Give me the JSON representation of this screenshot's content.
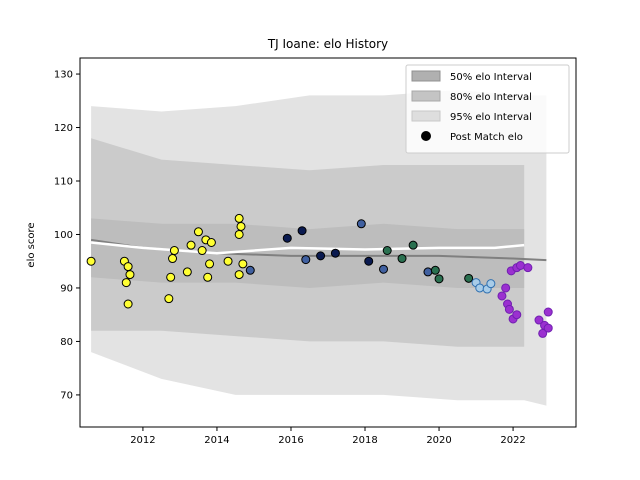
{
  "chart_data": {
    "type": "scatter",
    "title": "TJ Ioane: elo History",
    "xlabel": "",
    "ylabel": "elo score",
    "xlim": [
      2010.3,
      2023.7
    ],
    "ylim": [
      64,
      133
    ],
    "x_ticks": [
      2012,
      2014,
      2016,
      2018,
      2020,
      2022
    ],
    "y_ticks": [
      70,
      80,
      90,
      100,
      110,
      120,
      130
    ],
    "grid": false,
    "legend_placement": "top-right",
    "legend": [
      {
        "label": "50% elo Interval",
        "kind": "band",
        "color": "#b0b0b0"
      },
      {
        "label": "80% elo Interval",
        "kind": "band",
        "color": "#c8c8c8"
      },
      {
        "label": "95% elo Interval",
        "kind": "band",
        "color": "#e0e0e0"
      },
      {
        "label": "Post Match elo",
        "kind": "marker",
        "color": "#000000"
      }
    ],
    "bands": {
      "x": [
        2010.6,
        2012.5,
        2014.5,
        2016.5,
        2018.5,
        2020.5,
        2022.3,
        2022.9
      ],
      "band95_upper": [
        124,
        123,
        124,
        126,
        126,
        127,
        126,
        126
      ],
      "band95_lower": [
        78,
        73,
        70,
        70,
        70,
        69,
        69,
        68
      ],
      "band80_upper": [
        118,
        114,
        113,
        112,
        113,
        113,
        113,
        0
      ],
      "band80_lower": [
        82,
        82,
        81,
        80,
        80,
        79,
        79,
        0
      ],
      "band50_upper": [
        103,
        102,
        102,
        101,
        102,
        101,
        101,
        0
      ],
      "band50_lower": [
        92,
        91,
        91,
        90,
        91,
        90,
        90,
        0
      ]
    },
    "series": [
      {
        "name": "Post Match elo",
        "points": [
          {
            "x": 2010.6,
            "y": 95,
            "color": "#ffff33",
            "edge": "#000000"
          },
          {
            "x": 2011.5,
            "y": 95,
            "color": "#ffff33",
            "edge": "#000000"
          },
          {
            "x": 2011.55,
            "y": 91,
            "color": "#ffff33",
            "edge": "#000000"
          },
          {
            "x": 2011.6,
            "y": 87,
            "color": "#ffff33",
            "edge": "#000000"
          },
          {
            "x": 2011.6,
            "y": 94,
            "color": "#ffff33",
            "edge": "#000000"
          },
          {
            "x": 2011.65,
            "y": 92.5,
            "color": "#ffff33",
            "edge": "#000000"
          },
          {
            "x": 2012.7,
            "y": 88,
            "color": "#ffff33",
            "edge": "#000000"
          },
          {
            "x": 2012.75,
            "y": 92,
            "color": "#ffff33",
            "edge": "#000000"
          },
          {
            "x": 2012.8,
            "y": 95.5,
            "color": "#ffff33",
            "edge": "#000000"
          },
          {
            "x": 2012.85,
            "y": 97,
            "color": "#ffff33",
            "edge": "#000000"
          },
          {
            "x": 2013.2,
            "y": 93,
            "color": "#ffff33",
            "edge": "#000000"
          },
          {
            "x": 2013.3,
            "y": 98,
            "color": "#ffff33",
            "edge": "#000000"
          },
          {
            "x": 2013.5,
            "y": 100.5,
            "color": "#ffff33",
            "edge": "#000000"
          },
          {
            "x": 2013.6,
            "y": 97,
            "color": "#ffff33",
            "edge": "#000000"
          },
          {
            "x": 2013.7,
            "y": 99,
            "color": "#ffff33",
            "edge": "#000000"
          },
          {
            "x": 2013.75,
            "y": 92,
            "color": "#ffff33",
            "edge": "#000000"
          },
          {
            "x": 2013.8,
            "y": 94.5,
            "color": "#ffff33",
            "edge": "#000000"
          },
          {
            "x": 2013.85,
            "y": 98.5,
            "color": "#ffff33",
            "edge": "#000000"
          },
          {
            "x": 2014.3,
            "y": 95,
            "color": "#ffff33",
            "edge": "#000000"
          },
          {
            "x": 2014.6,
            "y": 103,
            "color": "#ffff33",
            "edge": "#000000"
          },
          {
            "x": 2014.65,
            "y": 101.5,
            "color": "#ffff33",
            "edge": "#000000"
          },
          {
            "x": 2014.6,
            "y": 100,
            "color": "#ffff33",
            "edge": "#000000"
          },
          {
            "x": 2014.6,
            "y": 92.5,
            "color": "#ffff33",
            "edge": "#000000"
          },
          {
            "x": 2014.7,
            "y": 94.5,
            "color": "#ffff33",
            "edge": "#000000"
          },
          {
            "x": 2014.9,
            "y": 93.3,
            "color": "#4060a0",
            "edge": "#000000"
          },
          {
            "x": 2015.9,
            "y": 99.3,
            "color": "#0a1a50",
            "edge": "#000000"
          },
          {
            "x": 2016.3,
            "y": 100.7,
            "color": "#0a1a50",
            "edge": "#000000"
          },
          {
            "x": 2016.4,
            "y": 95.3,
            "color": "#4060a0",
            "edge": "#000000"
          },
          {
            "x": 2016.8,
            "y": 96,
            "color": "#0a1a50",
            "edge": "#000000"
          },
          {
            "x": 2017.2,
            "y": 96.5,
            "color": "#0a1a50",
            "edge": "#000000"
          },
          {
            "x": 2017.9,
            "y": 102,
            "color": "#4060a0",
            "edge": "#000000"
          },
          {
            "x": 2018.1,
            "y": 95,
            "color": "#0a1a50",
            "edge": "#000000"
          },
          {
            "x": 2018.5,
            "y": 93.5,
            "color": "#4060a0",
            "edge": "#000000"
          },
          {
            "x": 2018.6,
            "y": 97,
            "color": "#2a7050",
            "edge": "#000000"
          },
          {
            "x": 2019.0,
            "y": 95.5,
            "color": "#2a7050",
            "edge": "#000000"
          },
          {
            "x": 2019.3,
            "y": 98,
            "color": "#2a7050",
            "edge": "#000000"
          },
          {
            "x": 2019.7,
            "y": 93,
            "color": "#4060a0",
            "edge": "#000000"
          },
          {
            "x": 2019.9,
            "y": 93.3,
            "color": "#2a7050",
            "edge": "#000000"
          },
          {
            "x": 2020.0,
            "y": 91.7,
            "color": "#2a7050",
            "edge": "#000000"
          },
          {
            "x": 2020.8,
            "y": 91.8,
            "color": "#2a7050",
            "edge": "#000000"
          },
          {
            "x": 2021.0,
            "y": 91,
            "color": "#a8cce8",
            "edge": "#3070b0"
          },
          {
            "x": 2021.1,
            "y": 90,
            "color": "#a8cce8",
            "edge": "#3070b0"
          },
          {
            "x": 2021.3,
            "y": 89.8,
            "color": "#a8cce8",
            "edge": "#3070b0"
          },
          {
            "x": 2021.4,
            "y": 90.8,
            "color": "#a8cce8",
            "edge": "#3070b0"
          },
          {
            "x": 2021.7,
            "y": 88.5,
            "color": "#9b30d0",
            "edge": "#7020b0"
          },
          {
            "x": 2021.8,
            "y": 90,
            "color": "#9b30d0",
            "edge": "#7020b0"
          },
          {
            "x": 2021.85,
            "y": 87,
            "color": "#9b30d0",
            "edge": "#7020b0"
          },
          {
            "x": 2021.9,
            "y": 86,
            "color": "#9b30d0",
            "edge": "#7020b0"
          },
          {
            "x": 2022.0,
            "y": 84.2,
            "color": "#9b30d0",
            "edge": "#7020b0"
          },
          {
            "x": 2022.1,
            "y": 85,
            "color": "#9b30d0",
            "edge": "#7020b0"
          },
          {
            "x": 2021.95,
            "y": 93.2,
            "color": "#9b30d0",
            "edge": "#7020b0"
          },
          {
            "x": 2022.1,
            "y": 93.8,
            "color": "#9b30d0",
            "edge": "#7020b0"
          },
          {
            "x": 2022.2,
            "y": 94.2,
            "color": "#9b30d0",
            "edge": "#7020b0"
          },
          {
            "x": 2022.4,
            "y": 93.8,
            "color": "#9b30d0",
            "edge": "#7020b0"
          },
          {
            "x": 2022.7,
            "y": 84,
            "color": "#9b30d0",
            "edge": "#7020b0"
          },
          {
            "x": 2022.8,
            "y": 81.5,
            "color": "#9b30d0",
            "edge": "#7020b0"
          },
          {
            "x": 2022.85,
            "y": 83,
            "color": "#9b30d0",
            "edge": "#7020b0"
          },
          {
            "x": 2022.95,
            "y": 85.5,
            "color": "#9b30d0",
            "edge": "#7020b0"
          },
          {
            "x": 2022.95,
            "y": 82.5,
            "color": "#9b30d0",
            "edge": "#7020b0"
          }
        ]
      }
    ],
    "lines": {
      "mean_gray": [
        [
          2010.6,
          99
        ],
        [
          2012,
          97.5
        ],
        [
          2014,
          96.5
        ],
        [
          2016,
          96
        ],
        [
          2018,
          96
        ],
        [
          2020,
          96
        ],
        [
          2022,
          95.5
        ],
        [
          2022.9,
          95.2
        ]
      ],
      "median_white": [
        [
          2010.6,
          98.5
        ],
        [
          2012,
          97.5
        ],
        [
          2014,
          96.5
        ],
        [
          2016,
          97.5
        ],
        [
          2018,
          97.2
        ],
        [
          2020,
          97.5
        ],
        [
          2021.5,
          97.5
        ],
        [
          2022.3,
          98
        ]
      ]
    }
  }
}
